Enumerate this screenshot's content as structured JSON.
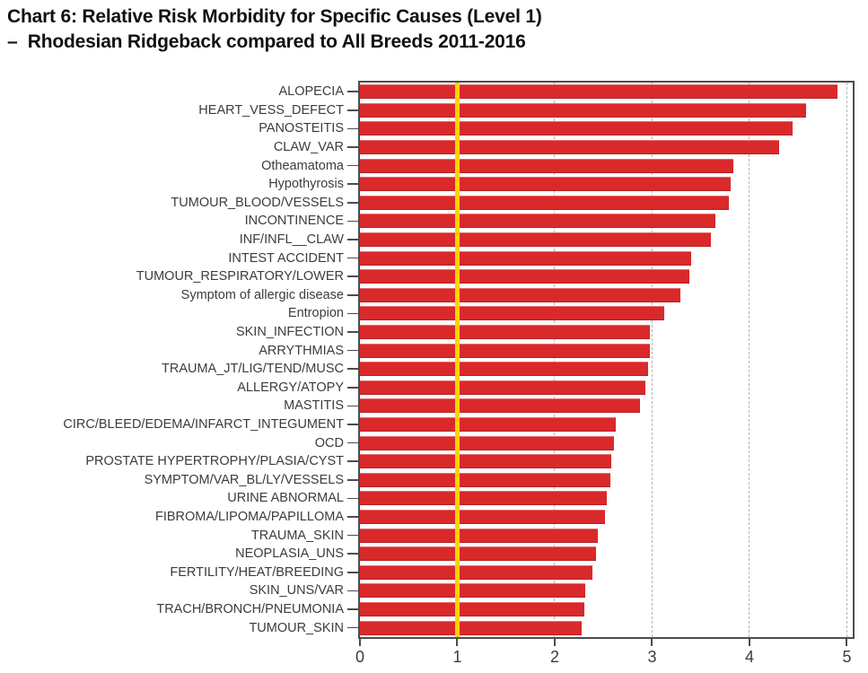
{
  "title": {
    "line1": "Chart 6: Relative Risk Morbidity for Specific Causes (Level 1)",
    "line2": "–  Rhodesian Ridgeback compared to All Breeds 2011-2016"
  },
  "chart_data": {
    "type": "bar",
    "orientation": "horizontal",
    "title": "Chart 6: Relative Risk Morbidity for Specific Causes (Level 1) – Rhodesian Ridgeback compared to All Breeds 2011-2016",
    "xlabel": "",
    "ylabel": "",
    "xlim": [
      0,
      5.06
    ],
    "x_ticks": [
      0,
      1,
      2,
      3,
      4,
      5
    ],
    "gridlines_x": [
      2,
      3,
      4,
      5
    ],
    "grid_style": "dashed",
    "legend": "none",
    "reference_line_x": 1,
    "categories": [
      "ALOPECIA",
      "HEART_VESS_DEFECT",
      "PANOSTEITIS",
      "CLAW_VAR",
      "Otheamatoma",
      "Hypothyrosis",
      "TUMOUR_BLOOD/VESSELS",
      "INCONTINENCE",
      "INF/INFL__CLAW",
      "INTEST ACCIDENT",
      "TUMOUR_RESPIRATORY/LOWER",
      "Symptom of allergic disease",
      "Entropion",
      "SKIN_INFECTION",
      "ARRYTHMIAS",
      "TRAUMA_JT/LIG/TEND/MUSC",
      "ALLERGY/ATOPY",
      "MASTITIS",
      "CIRC/BLEED/EDEMA/INFARCT_INTEGUMENT",
      "OCD",
      "PROSTATE HYPERTROPHY/PLASIA/CYST",
      "SYMPTOM/VAR_BL/LY/VESSELS",
      "URINE ABNORMAL",
      "FIBROMA/LIPOMA/PAPILLOMA",
      "TRAUMA_SKIN",
      "NEOPLASIA_UNS",
      "FERTILITY/HEAT/BREEDING",
      "SKIN_UNS/VAR",
      "TRACH/BRONCH/PNEUMONIA",
      "TUMOUR_SKIN"
    ],
    "values": [
      4.9,
      4.58,
      4.44,
      4.3,
      3.83,
      3.81,
      3.79,
      3.65,
      3.6,
      3.4,
      3.38,
      3.29,
      3.12,
      2.98,
      2.98,
      2.96,
      2.93,
      2.88,
      2.63,
      2.61,
      2.58,
      2.57,
      2.53,
      2.52,
      2.44,
      2.42,
      2.39,
      2.31,
      2.3,
      2.28
    ],
    "colors": {
      "bar": "#d9292b",
      "reference_line": "#fcd303",
      "grid": "#b5b5b5",
      "axis": "#4d4d4d",
      "label_text": "#3c3c3c",
      "title_text": "#111111"
    }
  }
}
